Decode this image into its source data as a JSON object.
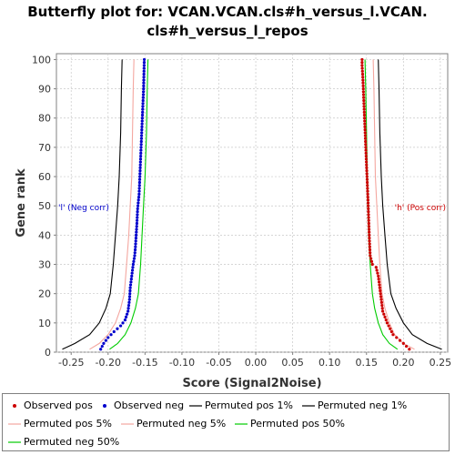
{
  "chart_data": {
    "type": "line",
    "title": "Butterfly plot for: VCAN.VCAN.cls#h_versus_l.VCAN.cls#h_versus_l_repos",
    "title_lines": [
      "Butterfly plot for: VCAN.VCAN.cls#h_versus_l.VCAN.",
      "cls#h_versus_l_repos"
    ],
    "xlabel": "Score (Signal2Noise)",
    "ylabel": "Gene rank",
    "xlim": [
      -0.27,
      0.26
    ],
    "ylim": [
      0,
      102
    ],
    "xticks": [
      "-0.25",
      "-0.20",
      "-0.15",
      "-0.10",
      "-0.05",
      "0.00",
      "0.05",
      "0.10",
      "0.15",
      "0.20",
      "0.25"
    ],
    "yticks": [
      "0",
      "10",
      "20",
      "30",
      "40",
      "50",
      "60",
      "70",
      "80",
      "90",
      "100"
    ],
    "grid": true,
    "annotations": [
      {
        "text": "'l' (Neg corr)",
        "x": -0.255,
        "y": 50,
        "color": "#0000cc"
      },
      {
        "text": "'h' (Pos corr)",
        "x": 0.25,
        "y": 50,
        "color": "#cc0000"
      }
    ],
    "series": [
      {
        "name": "Observed pos",
        "kind": "points",
        "color": "#cc0000",
        "x": [
          0.208,
          0.2,
          0.186,
          0.178,
          0.172,
          0.17,
          0.168,
          0.166,
          0.163,
          0.158,
          0.155,
          0.154,
          0.153,
          0.152,
          0.151,
          0.15,
          0.149,
          0.148,
          0.147,
          0.146,
          0.145,
          0.144,
          0.144
        ],
        "y": [
          1,
          3,
          6,
          10,
          14,
          18,
          22,
          26,
          29,
          30,
          33,
          38,
          45,
          52,
          58,
          64,
          70,
          76,
          82,
          88,
          94,
          98,
          100
        ]
      },
      {
        "name": "Observed neg",
        "kind": "points",
        "color": "#0000cc",
        "x": [
          -0.21,
          -0.206,
          -0.2,
          -0.192,
          -0.183,
          -0.177,
          -0.173,
          -0.171,
          -0.17,
          -0.168,
          -0.166,
          -0.164,
          -0.163,
          -0.162,
          -0.161,
          -0.16,
          -0.158,
          -0.157,
          -0.156,
          -0.155,
          -0.154,
          -0.153,
          -0.152,
          -0.151
        ],
        "y": [
          1,
          3,
          5,
          7,
          9,
          11,
          14,
          18,
          22,
          26,
          30,
          33,
          36,
          40,
          44,
          49,
          54,
          60,
          66,
          72,
          78,
          84,
          90,
          100
        ]
      },
      {
        "name": "Permuted pos 1%",
        "kind": "line",
        "color": "#000000",
        "x": [
          0.252,
          0.232,
          0.212,
          0.2,
          0.19,
          0.183,
          0.178,
          0.175,
          0.172,
          0.17,
          0.168,
          0.167,
          0.166
        ],
        "y": [
          1,
          3,
          6,
          10,
          15,
          20,
          30,
          40,
          50,
          60,
          75,
          90,
          100
        ]
      },
      {
        "name": "Permuted neg 1%",
        "kind": "line",
        "color": "#000000",
        "x": [
          -0.262,
          -0.245,
          -0.225,
          -0.212,
          -0.203,
          -0.197,
          -0.193,
          -0.19,
          -0.187,
          -0.185,
          -0.183,
          -0.182,
          -0.181
        ],
        "y": [
          1,
          3,
          6,
          10,
          15,
          20,
          30,
          40,
          50,
          60,
          75,
          90,
          100
        ]
      },
      {
        "name": "Permuted pos 5%",
        "kind": "line",
        "color": "#f4a7a0",
        "x": [
          0.215,
          0.2,
          0.188,
          0.181,
          0.175,
          0.171,
          0.168,
          0.166,
          0.164,
          0.162,
          0.161,
          0.16,
          0.159
        ],
        "y": [
          1,
          3,
          6,
          10,
          15,
          20,
          30,
          40,
          50,
          60,
          75,
          90,
          100
        ]
      },
      {
        "name": "Permuted neg 5%",
        "kind": "line",
        "color": "#f4a7a0",
        "x": [
          -0.225,
          -0.212,
          -0.2,
          -0.19,
          -0.183,
          -0.178,
          -0.175,
          -0.172,
          -0.17,
          -0.168,
          -0.167,
          -0.166,
          -0.165
        ],
        "y": [
          1,
          3,
          6,
          10,
          15,
          20,
          30,
          40,
          50,
          60,
          75,
          90,
          100
        ]
      },
      {
        "name": "Permuted pos 50%",
        "kind": "line",
        "color": "#00cc00",
        "x": [
          0.192,
          0.181,
          0.172,
          0.166,
          0.161,
          0.158,
          0.155,
          0.153,
          0.152,
          0.151,
          0.15,
          0.149,
          0.148
        ],
        "y": [
          1,
          3,
          6,
          10,
          15,
          20,
          30,
          40,
          50,
          60,
          75,
          90,
          100
        ]
      },
      {
        "name": "Permuted neg 50%",
        "kind": "line",
        "color": "#00cc00",
        "x": [
          -0.198,
          -0.187,
          -0.177,
          -0.169,
          -0.163,
          -0.159,
          -0.156,
          -0.154,
          -0.152,
          -0.15,
          -0.148,
          -0.147,
          -0.146
        ],
        "y": [
          1,
          3,
          6,
          10,
          15,
          20,
          30,
          40,
          50,
          60,
          75,
          90,
          100
        ]
      }
    ]
  },
  "legend": [
    {
      "label": "Observed pos",
      "kind": "dot",
      "color": "#cc0000"
    },
    {
      "label": "Observed neg",
      "kind": "dot",
      "color": "#0000cc"
    },
    {
      "label": "Permuted pos 1%",
      "kind": "line",
      "color": "#000000"
    },
    {
      "label": "Permuted neg 1%",
      "kind": "line",
      "color": "#000000"
    },
    {
      "label": "Permuted pos 5%",
      "kind": "line",
      "color": "#f4a7a0"
    },
    {
      "label": "Permuted neg 5%",
      "kind": "line",
      "color": "#f4a7a0"
    },
    {
      "label": "Permuted pos 50%",
      "kind": "line",
      "color": "#00cc00"
    },
    {
      "label": "Permuted neg 50%",
      "kind": "line",
      "color": "#00cc00"
    }
  ]
}
